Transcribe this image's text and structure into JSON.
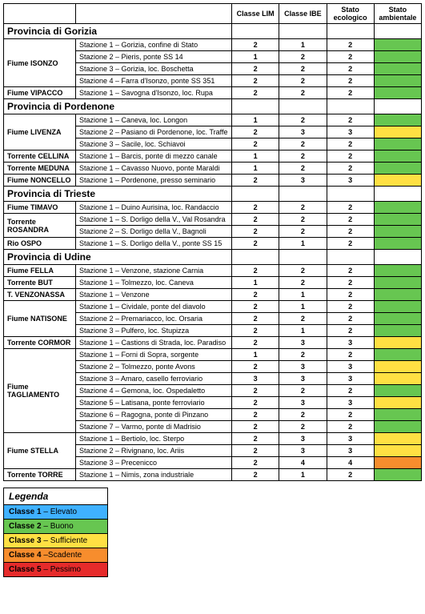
{
  "colors": {
    "classe1": "#3fb1ff",
    "classe2": "#67c651",
    "classe3": "#ffe043",
    "classe4": "#f78d2d",
    "classe5": "#e62b2b"
  },
  "headers": {
    "lim": "Classe LIM",
    "ibe": "Classe IBE",
    "eco": "Stato ecologico",
    "amb": "Stato ambientale"
  },
  "legend": {
    "title": "Legenda",
    "rows": [
      {
        "label": "Classe 1",
        "desc": " – Elevato",
        "colorKey": "classe1"
      },
      {
        "label": "Classe 2",
        "desc": " – Buono",
        "colorKey": "classe2"
      },
      {
        "label": "Classe 3",
        "desc": " – Sufficiente",
        "colorKey": "classe3"
      },
      {
        "label": "Classe 4",
        "desc": " –Scadente",
        "colorKey": "classe4"
      },
      {
        "label": "Classe 5",
        "desc": " – Pessimo",
        "colorKey": "classe5"
      }
    ]
  },
  "provinces": [
    {
      "name": "Provincia di Gorizia",
      "rivers": [
        {
          "name": "Fiume ISONZO",
          "stations": [
            {
              "label": "Stazione 1 – Gorizia, confine di Stato",
              "lim": "2",
              "ibe": "1",
              "eco": "2",
              "ambKey": "classe2"
            },
            {
              "label": "Stazione 2 – Pieris, ponte SS 14",
              "lim": "1",
              "ibe": "2",
              "eco": "2",
              "ambKey": "classe2"
            },
            {
              "label": "Stazione 3 – Gorizia, loc. Boschetta",
              "lim": "2",
              "ibe": "2",
              "eco": "2",
              "ambKey": "classe2"
            },
            {
              "label": "Stazione 4 – Farra d'Isonzo, ponte SS 351",
              "lim": "2",
              "ibe": "2",
              "eco": "2",
              "ambKey": "classe2"
            }
          ]
        },
        {
          "name": "Fiume VIPACCO",
          "stations": [
            {
              "label": "Stazione 1 – Savogna d'Isonzo, loc. Rupa",
              "lim": "2",
              "ibe": "2",
              "eco": "2",
              "ambKey": "classe2"
            }
          ]
        }
      ]
    },
    {
      "name": "Provincia di Pordenone",
      "rivers": [
        {
          "name": "Fiume LIVENZA",
          "stations": [
            {
              "label": "Stazione 1 – Caneva, loc. Longon",
              "lim": "1",
              "ibe": "2",
              "eco": "2",
              "ambKey": "classe2"
            },
            {
              "label": "Stazione 2 – Pasiano di Pordenone, loc. Traffe",
              "lim": "2",
              "ibe": "3",
              "eco": "3",
              "ambKey": "classe3"
            },
            {
              "label": "Stazione 3 – Sacile, loc. Schiavoi",
              "lim": "2",
              "ibe": "2",
              "eco": "2",
              "ambKey": "classe2"
            }
          ]
        },
        {
          "name": "Torrente CELLINA",
          "stations": [
            {
              "label": "Stazione 1 – Barcis, ponte di mezzo canale",
              "lim": "1",
              "ibe": "2",
              "eco": "2",
              "ambKey": "classe2"
            }
          ]
        },
        {
          "name": "Torrente MEDUNA",
          "stations": [
            {
              "label": "Stazione 1 – Cavasso Nuovo, ponte Maraldi",
              "lim": "1",
              "ibe": "2",
              "eco": "2",
              "ambKey": "classe2"
            }
          ]
        },
        {
          "name": "Fiume NONCELLO",
          "stations": [
            {
              "label": "Stazione 1 – Pordenone, presso seminario",
              "lim": "2",
              "ibe": "3",
              "eco": "3",
              "ambKey": "classe3"
            }
          ]
        }
      ]
    },
    {
      "name": "Provincia di Trieste",
      "rivers": [
        {
          "name": "Fiume TIMAVO",
          "stations": [
            {
              "label": "Stazione 1 – Duino Aurisina, loc. Randaccio",
              "lim": "2",
              "ibe": "2",
              "eco": "2",
              "ambKey": "classe2"
            }
          ]
        },
        {
          "name": "Torrente ROSANDRA",
          "stations": [
            {
              "label": "Stazione 1 – S. Dorligo della V., Val Rosandra",
              "lim": "2",
              "ibe": "2",
              "eco": "2",
              "ambKey": "classe2"
            },
            {
              "label": "Stazione 2 – S. Dorligo della V., Bagnoli",
              "lim": "2",
              "ibe": "2",
              "eco": "2",
              "ambKey": "classe2"
            }
          ]
        },
        {
          "name": "Rio OSPO",
          "stations": [
            {
              "label": "Stazione 1 – S. Dorligo della V., ponte SS 15",
              "lim": "2",
              "ibe": "1",
              "eco": "2",
              "ambKey": "classe2"
            }
          ]
        }
      ]
    },
    {
      "name": "Provincia di Udine",
      "rivers": [
        {
          "name": "Fiume FELLA",
          "stations": [
            {
              "label": "Stazione 1 – Venzone, stazione Carnia",
              "lim": "2",
              "ibe": "2",
              "eco": "2",
              "ambKey": "classe2"
            }
          ]
        },
        {
          "name": "Torrente BUT",
          "stations": [
            {
              "label": "Stazione 1 – Tolmezzo, loc. Caneva",
              "lim": "1",
              "ibe": "2",
              "eco": "2",
              "ambKey": "classe2"
            }
          ]
        },
        {
          "name": "T. VENZONASSA",
          "stations": [
            {
              "label": "Stazione 1 – Venzone",
              "lim": "2",
              "ibe": "1",
              "eco": "2",
              "ambKey": "classe2"
            }
          ]
        },
        {
          "name": "Fiume NATISONE",
          "stations": [
            {
              "label": "Stazione 1 – Cividale, ponte del diavolo",
              "lim": "2",
              "ibe": "1",
              "eco": "2",
              "ambKey": "classe2"
            },
            {
              "label": "Stazione 2 – Premariacco, loc. Orsaria",
              "lim": "2",
              "ibe": "2",
              "eco": "2",
              "ambKey": "classe2"
            },
            {
              "label": "Stazione 3 – Pulfero, loc. Stupizza",
              "lim": "2",
              "ibe": "1",
              "eco": "2",
              "ambKey": "classe2"
            }
          ]
        },
        {
          "name": "Torrente CORMOR",
          "stations": [
            {
              "label": "Stazione 1 – Castions di Strada, loc. Paradiso",
              "lim": "2",
              "ibe": "3",
              "eco": "3",
              "ambKey": "classe3"
            }
          ]
        },
        {
          "name": "Fiume TAGLIAMENTO",
          "stations": [
            {
              "label": "Stazione 1 – Forni di Sopra, sorgente",
              "lim": "1",
              "ibe": "2",
              "eco": "2",
              "ambKey": "classe2"
            },
            {
              "label": "Stazione 2 – Tolmezzo, ponte Avons",
              "lim": "2",
              "ibe": "3",
              "eco": "3",
              "ambKey": "classe3"
            },
            {
              "label": "Stazione 3 – Amaro, casello ferroviario",
              "lim": "3",
              "ibe": "3",
              "eco": "3",
              "ambKey": "classe3"
            },
            {
              "label": "Stazione 4 – Gemona, loc. Ospedaletto",
              "lim": "2",
              "ibe": "2",
              "eco": "2",
              "ambKey": "classe2"
            },
            {
              "label": "Stazione 5 – Latisana, ponte ferroviario",
              "lim": "2",
              "ibe": "3",
              "eco": "3",
              "ambKey": "classe3"
            },
            {
              "label": "Stazione 6 – Ragogna, ponte di Pinzano",
              "lim": "2",
              "ibe": "2",
              "eco": "2",
              "ambKey": "classe2"
            },
            {
              "label": "Stazione 7 – Varmo, ponte di Madrisio",
              "lim": "2",
              "ibe": "2",
              "eco": "2",
              "ambKey": "classe2"
            }
          ]
        },
        {
          "name": "Fiume STELLA",
          "stations": [
            {
              "label": "Stazione 1 – Bertiolo, loc. Sterpo",
              "lim": "2",
              "ibe": "3",
              "eco": "3",
              "ambKey": "classe3"
            },
            {
              "label": "Stazione 2 – Rivignano, loc. Ariis",
              "lim": "2",
              "ibe": "3",
              "eco": "3",
              "ambKey": "classe3"
            },
            {
              "label": "Stazione 3 – Precenicco",
              "lim": "2",
              "ibe": "4",
              "eco": "4",
              "ambKey": "classe4"
            }
          ]
        },
        {
          "name": "Torrente TORRE",
          "stations": [
            {
              "label": "Stazione 1 – Nimis, zona industriale",
              "lim": "2",
              "ibe": "1",
              "eco": "2",
              "ambKey": "classe2"
            }
          ]
        }
      ]
    }
  ]
}
